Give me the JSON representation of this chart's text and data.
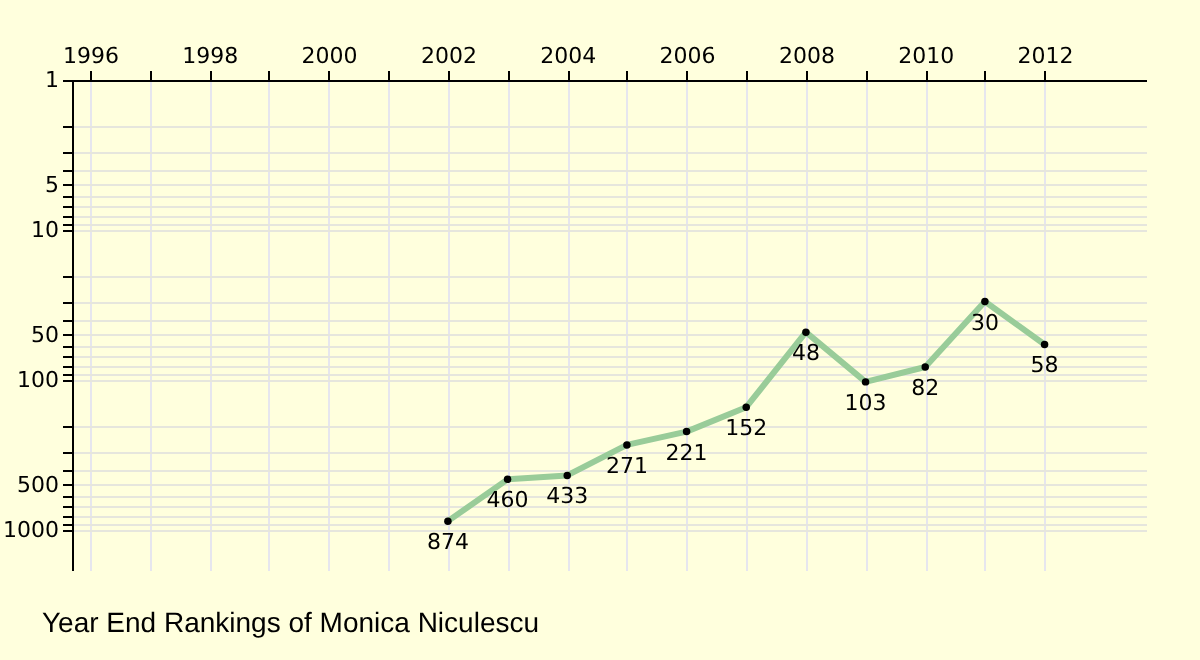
{
  "chart_data": {
    "type": "line",
    "title": "Year End Rankings of Monica Niculescu",
    "x": [
      2002,
      2003,
      2004,
      2005,
      2006,
      2007,
      2008,
      2009,
      2010,
      2011,
      2012
    ],
    "series": [
      {
        "color": "#99cc99",
        "values": [
          874,
          460,
          433,
          271,
          221,
          152,
          48,
          103,
          82,
          30,
          58
        ]
      }
    ],
    "xlim": [
      1995.7,
      2013.7
    ],
    "xticks": [
      1996,
      {
        "value": 1997,
        "label": null
      },
      1998,
      {
        "value": 1999,
        "label": null
      },
      2000,
      {
        "value": 2001,
        "label": null
      },
      2002,
      {
        "value": 2003,
        "label": null
      },
      2004,
      {
        "value": 2005,
        "label": null
      },
      2006,
      {
        "value": 2007,
        "label": null
      },
      2008,
      {
        "value": 2009,
        "label": null
      },
      2010,
      {
        "value": 2011,
        "label": null
      },
      2012
    ],
    "ylim": [
      1850,
      1
    ],
    "yticks": [
      1,
      {
        "value": 2,
        "label": null
      },
      {
        "value": 3,
        "label": null
      },
      {
        "value": 4,
        "label": null
      },
      5,
      {
        "value": 6,
        "label": null
      },
      {
        "value": 7,
        "label": null
      },
      {
        "value": 8,
        "label": null
      },
      {
        "value": 9,
        "label": null
      },
      10,
      {
        "value": 20,
        "label": null
      },
      {
        "value": 30,
        "label": null
      },
      {
        "value": 40,
        "label": null
      },
      50,
      {
        "value": 60,
        "label": null
      },
      {
        "value": 70,
        "label": null
      },
      {
        "value": 80,
        "label": null
      },
      {
        "value": 90,
        "label": null
      },
      100,
      {
        "value": 200,
        "label": null
      },
      {
        "value": 300,
        "label": null
      },
      {
        "value": 400,
        "label": null
      },
      500,
      {
        "value": 600,
        "label": null
      },
      {
        "value": 700,
        "label": null
      },
      {
        "value": 800,
        "label": null
      },
      {
        "value": 900,
        "label": null
      },
      1000
    ],
    "log": true,
    "grid": true,
    "marker": "circle",
    "line_style": "solid",
    "data_labels": true
  }
}
